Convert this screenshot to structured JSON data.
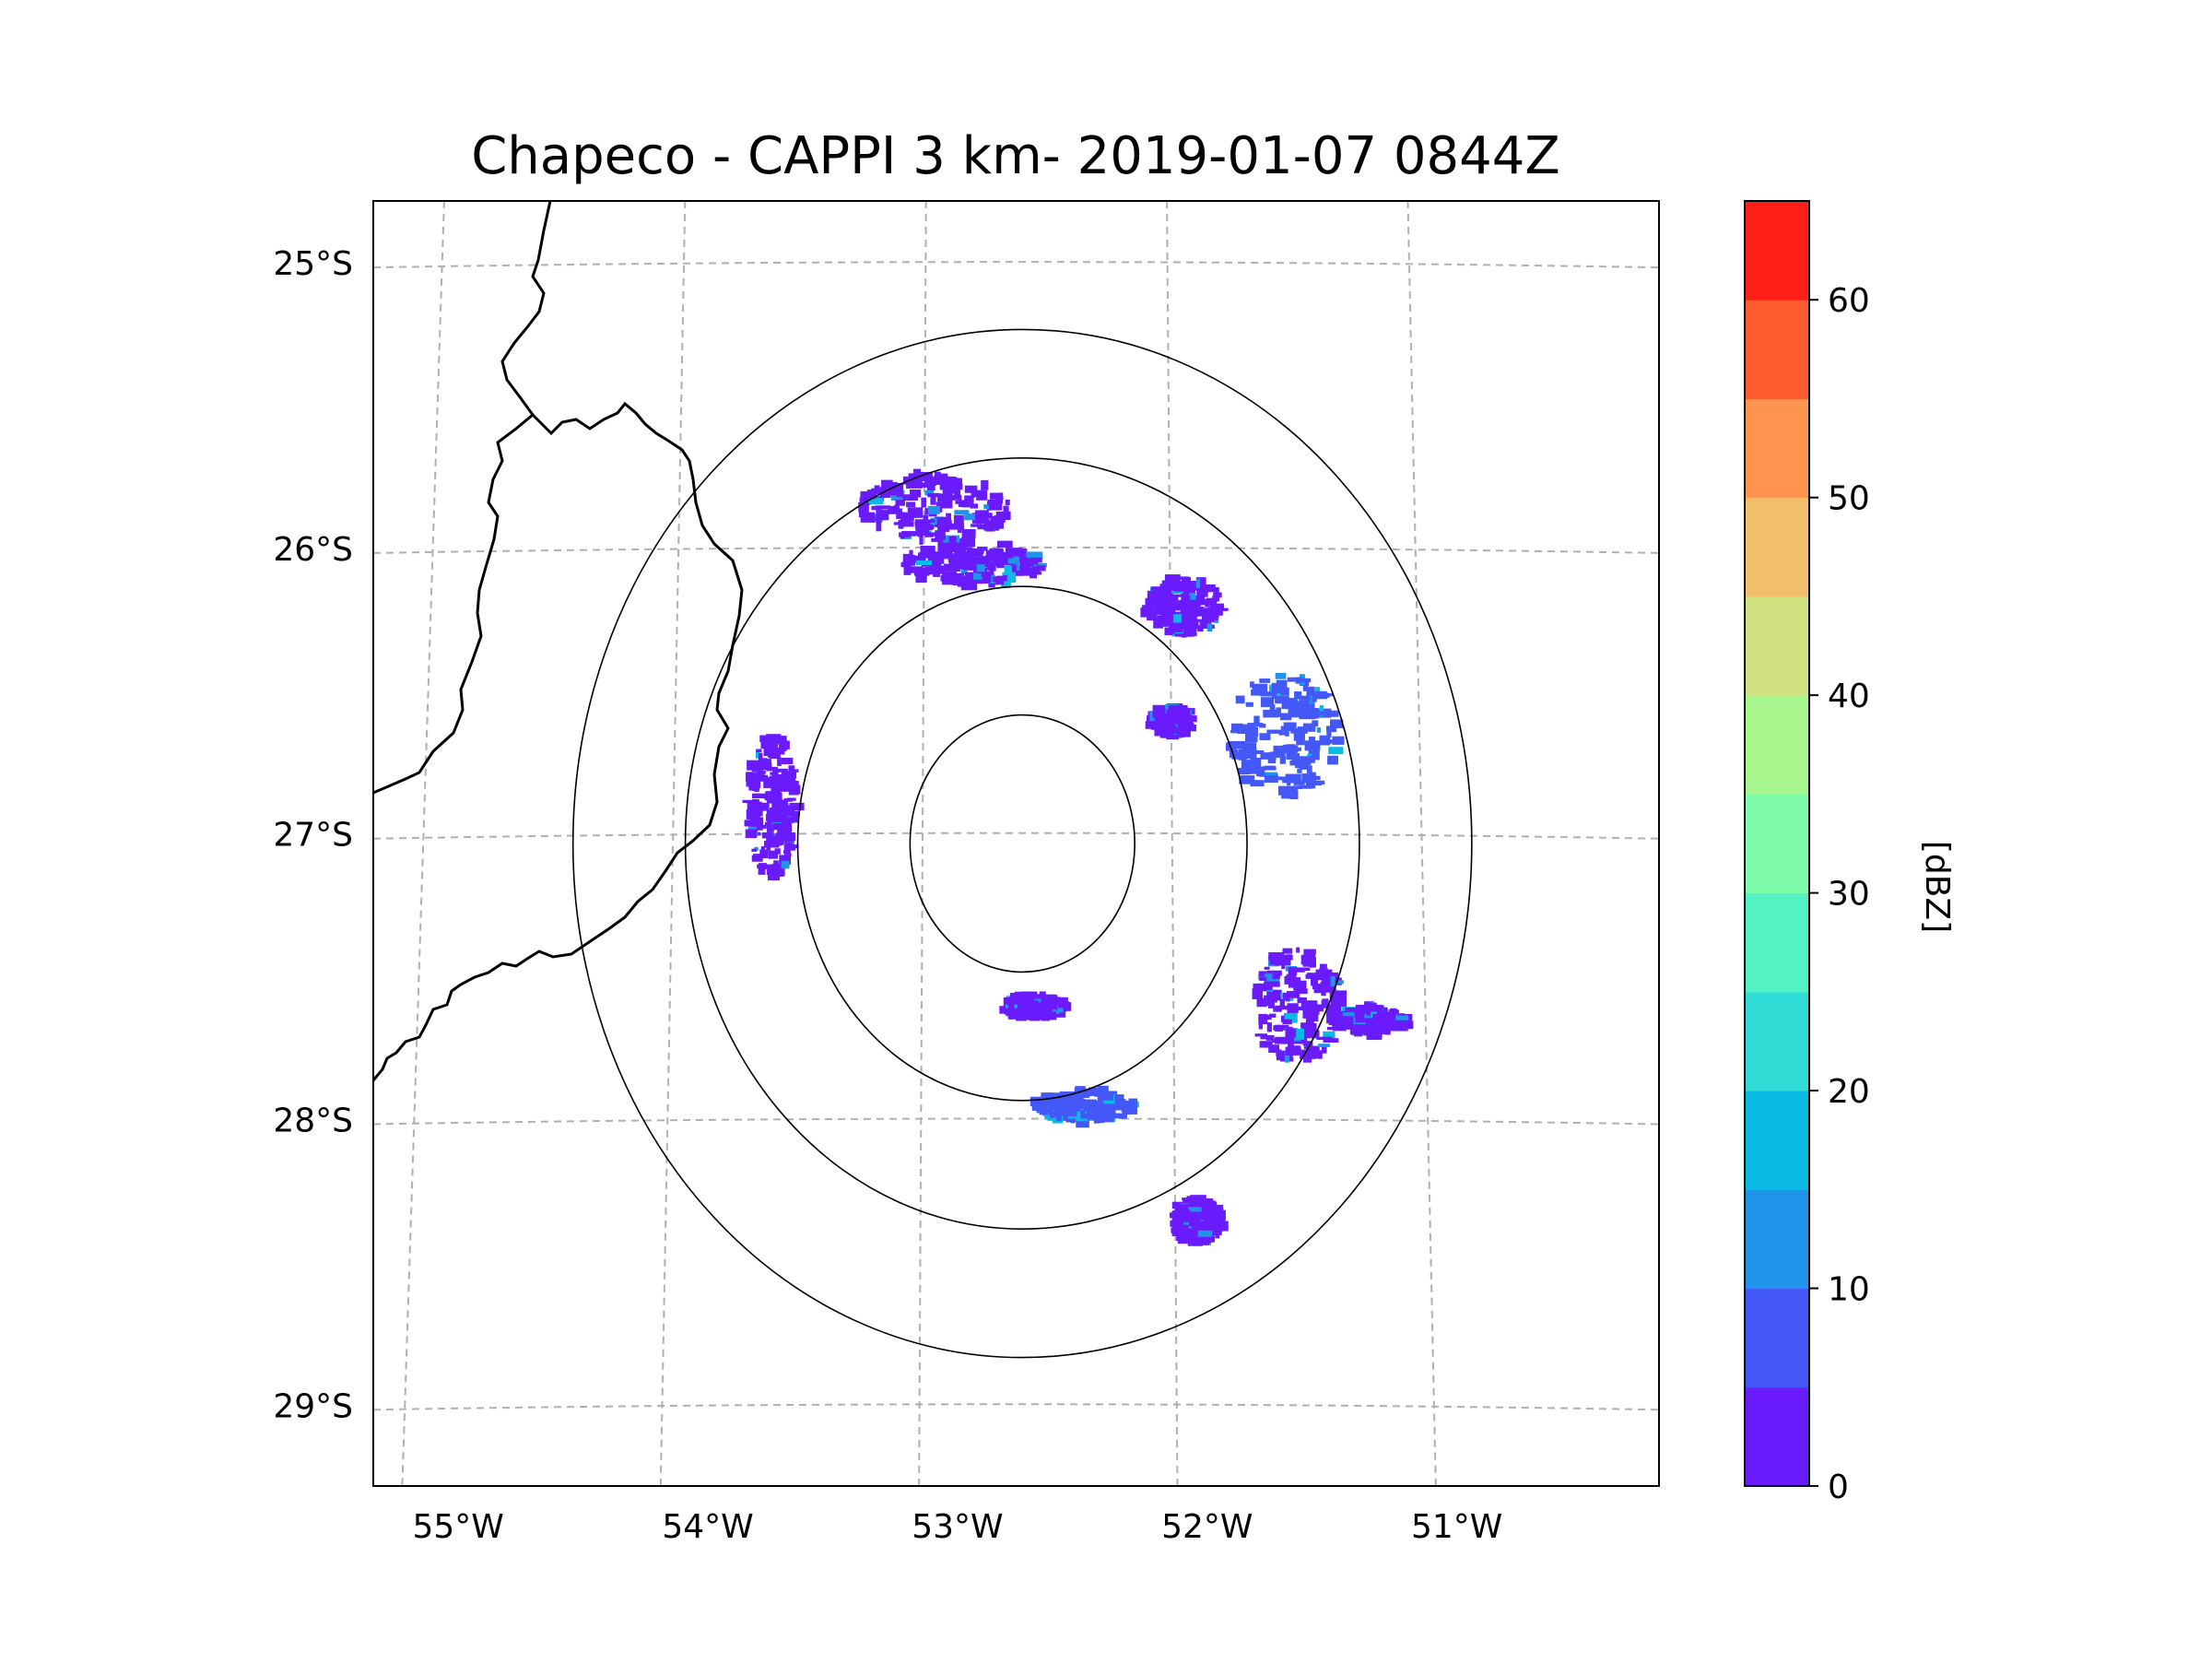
{
  "chart_data": {
    "type": "heatmap",
    "title": "Chapeco - CAPPI 3 km- 2019-01-07 0844Z",
    "projection": "azimuthal map centered on radar site",
    "xlim": [
      -55.2,
      -50.05
    ],
    "ylim": [
      -29.28,
      -24.78
    ],
    "radar_center": {
      "lon": -52.6,
      "lat": -27.03
    },
    "range_ring_radii_deg": [
      0.5,
      1.0,
      1.5,
      2.0
    ],
    "x_ticks": [
      {
        "value": -55,
        "label": "55°W"
      },
      {
        "value": -54,
        "label": "54°W"
      },
      {
        "value": -53,
        "label": "53°W"
      },
      {
        "value": -52,
        "label": "52°W"
      },
      {
        "value": -51,
        "label": "51°W"
      }
    ],
    "y_ticks": [
      {
        "value": -25,
        "label": "25°S"
      },
      {
        "value": -26,
        "label": "26°S"
      },
      {
        "value": -27,
        "label": "27°S"
      },
      {
        "value": -28,
        "label": "28°S"
      },
      {
        "value": -29,
        "label": "29°S"
      }
    ],
    "gridlines": true,
    "colorbar": {
      "label": "[dBZ]",
      "min": 0,
      "max": 65,
      "bin_edges": [
        0,
        5,
        10,
        15,
        20,
        25,
        30,
        35,
        40,
        45,
        50,
        55,
        60,
        65
      ],
      "colors": [
        "#6a1bfc",
        "#4358f7",
        "#2193eb",
        "#09bbe4",
        "#30dcd6",
        "#52f2c3",
        "#7dfba8",
        "#a7f68e",
        "#d0e280",
        "#f1be6b",
        "#ff9350",
        "#ff5b31",
        "#ff1f17"
      ],
      "tick_values": [
        0,
        10,
        20,
        30,
        40,
        50,
        60
      ],
      "tick_labels": [
        "0",
        "10",
        "20",
        "30",
        "40",
        "50",
        "60"
      ]
    },
    "echo_clusters": [
      {
        "name": "north-arc",
        "center": [
          -52.8,
          -26.05
        ],
        "spread": [
          0.28,
          0.08
        ],
        "dbz": 3
      },
      {
        "name": "north-streaks",
        "center": [
          -52.95,
          -25.85
        ],
        "spread": [
          0.3,
          0.12
        ],
        "dbz": 2
      },
      {
        "name": "northeast-cells",
        "center": [
          -51.55,
          -26.65
        ],
        "spread": [
          0.22,
          0.22
        ],
        "dbz": 5
      },
      {
        "name": "northeast-arc",
        "center": [
          -51.95,
          -26.2
        ],
        "spread": [
          0.15,
          0.1
        ],
        "dbz": 4
      },
      {
        "name": "central-band",
        "center": [
          -52.0,
          -26.6
        ],
        "spread": [
          0.08,
          0.05
        ],
        "dbz": 2
      },
      {
        "name": "southeast-storm",
        "center": [
          -51.5,
          -27.6
        ],
        "spread": [
          0.18,
          0.2
        ],
        "dbz": 3
      },
      {
        "name": "southeast-spoke",
        "center": [
          -51.2,
          -27.65
        ],
        "spread": [
          0.15,
          0.05
        ],
        "dbz": 2
      },
      {
        "name": "south-arc",
        "center": [
          -52.35,
          -27.95
        ],
        "spread": [
          0.2,
          0.06
        ],
        "dbz": 5
      },
      {
        "name": "south-small",
        "center": [
          -52.55,
          -27.6
        ],
        "spread": [
          0.12,
          0.04
        ],
        "dbz": 2
      },
      {
        "name": "far-south",
        "center": [
          -51.9,
          -28.35
        ],
        "spread": [
          0.1,
          0.08
        ],
        "dbz": 2
      },
      {
        "name": "west-scatter",
        "center": [
          -53.6,
          -26.9
        ],
        "spread": [
          0.1,
          0.25
        ],
        "dbz": 2
      }
    ]
  }
}
